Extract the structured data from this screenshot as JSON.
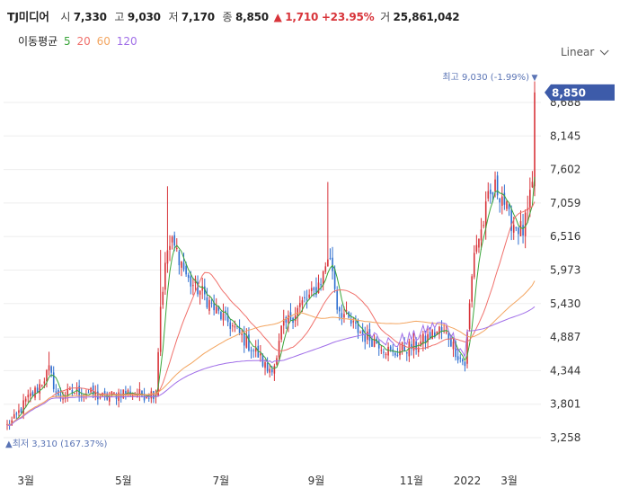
{
  "header": {
    "name": "TJ미디어",
    "open_label": "시",
    "open": "7,330",
    "high_label": "고",
    "high": "9,030",
    "low_label": "저",
    "low": "7,170",
    "close_label": "종",
    "close": "8,850",
    "change_arrow": "▲",
    "change": "1,710",
    "change_pct": "+23.95%",
    "volume_label": "거",
    "volume": "25,861,042"
  },
  "ma_legend": {
    "label": "이동평균",
    "items": [
      {
        "period": "5",
        "color": "#3aa53a"
      },
      {
        "period": "20",
        "color": "#f0706b"
      },
      {
        "period": "60",
        "color": "#f3a560"
      },
      {
        "period": "120",
        "color": "#a06ee8"
      }
    ]
  },
  "scale_button": {
    "label": "Linear",
    "icon": "chevron-down-icon"
  },
  "colors": {
    "up": "#d8343a",
    "down": "#2f6fd0",
    "price_tag": "#3d5ba9",
    "annotation": "#5a74b5"
  },
  "chart_data": {
    "type": "candlestick",
    "y_ticks": [
      "8,688",
      "8,145",
      "7,602",
      "7,059",
      "6,516",
      "5,973",
      "5,430",
      "4,887",
      "4,344",
      "3,801",
      "3,258"
    ],
    "x_ticks": [
      "3월",
      "5월",
      "7월",
      "9월",
      "11월",
      "2022",
      "3월"
    ],
    "ylim": [
      2900,
      9100
    ],
    "current_price": {
      "value": 8850,
      "label": "8,850"
    },
    "max_annotation": {
      "label": "최고",
      "text": "9,030 (-1.99%)",
      "value": 9030,
      "arrow": "▼"
    },
    "min_annotation": {
      "label": "최저",
      "text": "3,310 (167.37%)",
      "value": 3310,
      "arrow": "▲"
    },
    "anchors": [
      [
        0,
        3450
      ],
      [
        3,
        3550
      ],
      [
        8,
        3850
      ],
      [
        13,
        4050
      ],
      [
        18,
        4350
      ],
      [
        22,
        3900
      ],
      [
        28,
        4000
      ],
      [
        35,
        3980
      ],
      [
        42,
        3900
      ],
      [
        50,
        4000
      ],
      [
        58,
        3950
      ],
      [
        64,
        3990
      ],
      [
        66,
        5400
      ],
      [
        69,
        6300
      ],
      [
        71,
        6400
      ],
      [
        74,
        6200
      ],
      [
        78,
        5800
      ],
      [
        84,
        5600
      ],
      [
        90,
        5300
      ],
      [
        96,
        5100
      ],
      [
        102,
        4850
      ],
      [
        108,
        4600
      ],
      [
        112,
        4350
      ],
      [
        116,
        4500
      ],
      [
        118,
        5000
      ],
      [
        122,
        5200
      ],
      [
        126,
        5400
      ],
      [
        132,
        5600
      ],
      [
        136,
        5900
      ],
      [
        138,
        6200
      ],
      [
        140,
        6000
      ],
      [
        142,
        5400
      ],
      [
        148,
        5100
      ],
      [
        154,
        4900
      ],
      [
        160,
        4800
      ],
      [
        166,
        4600
      ],
      [
        170,
        4700
      ],
      [
        176,
        4750
      ],
      [
        182,
        4900
      ],
      [
        186,
        5000
      ],
      [
        190,
        4900
      ],
      [
        194,
        4600
      ],
      [
        197,
        4450
      ],
      [
        199,
        5400
      ],
      [
        201,
        6300
      ],
      [
        204,
        6600
      ],
      [
        207,
        7100
      ],
      [
        210,
        7300
      ],
      [
        213,
        7200
      ],
      [
        216,
        6800
      ],
      [
        219,
        6700
      ],
      [
        222,
        6600
      ],
      [
        224,
        6900
      ],
      [
        226,
        7300
      ],
      [
        227,
        8850
      ]
    ],
    "n_days": 228,
    "ma_periods": [
      5,
      20,
      60,
      120
    ]
  }
}
